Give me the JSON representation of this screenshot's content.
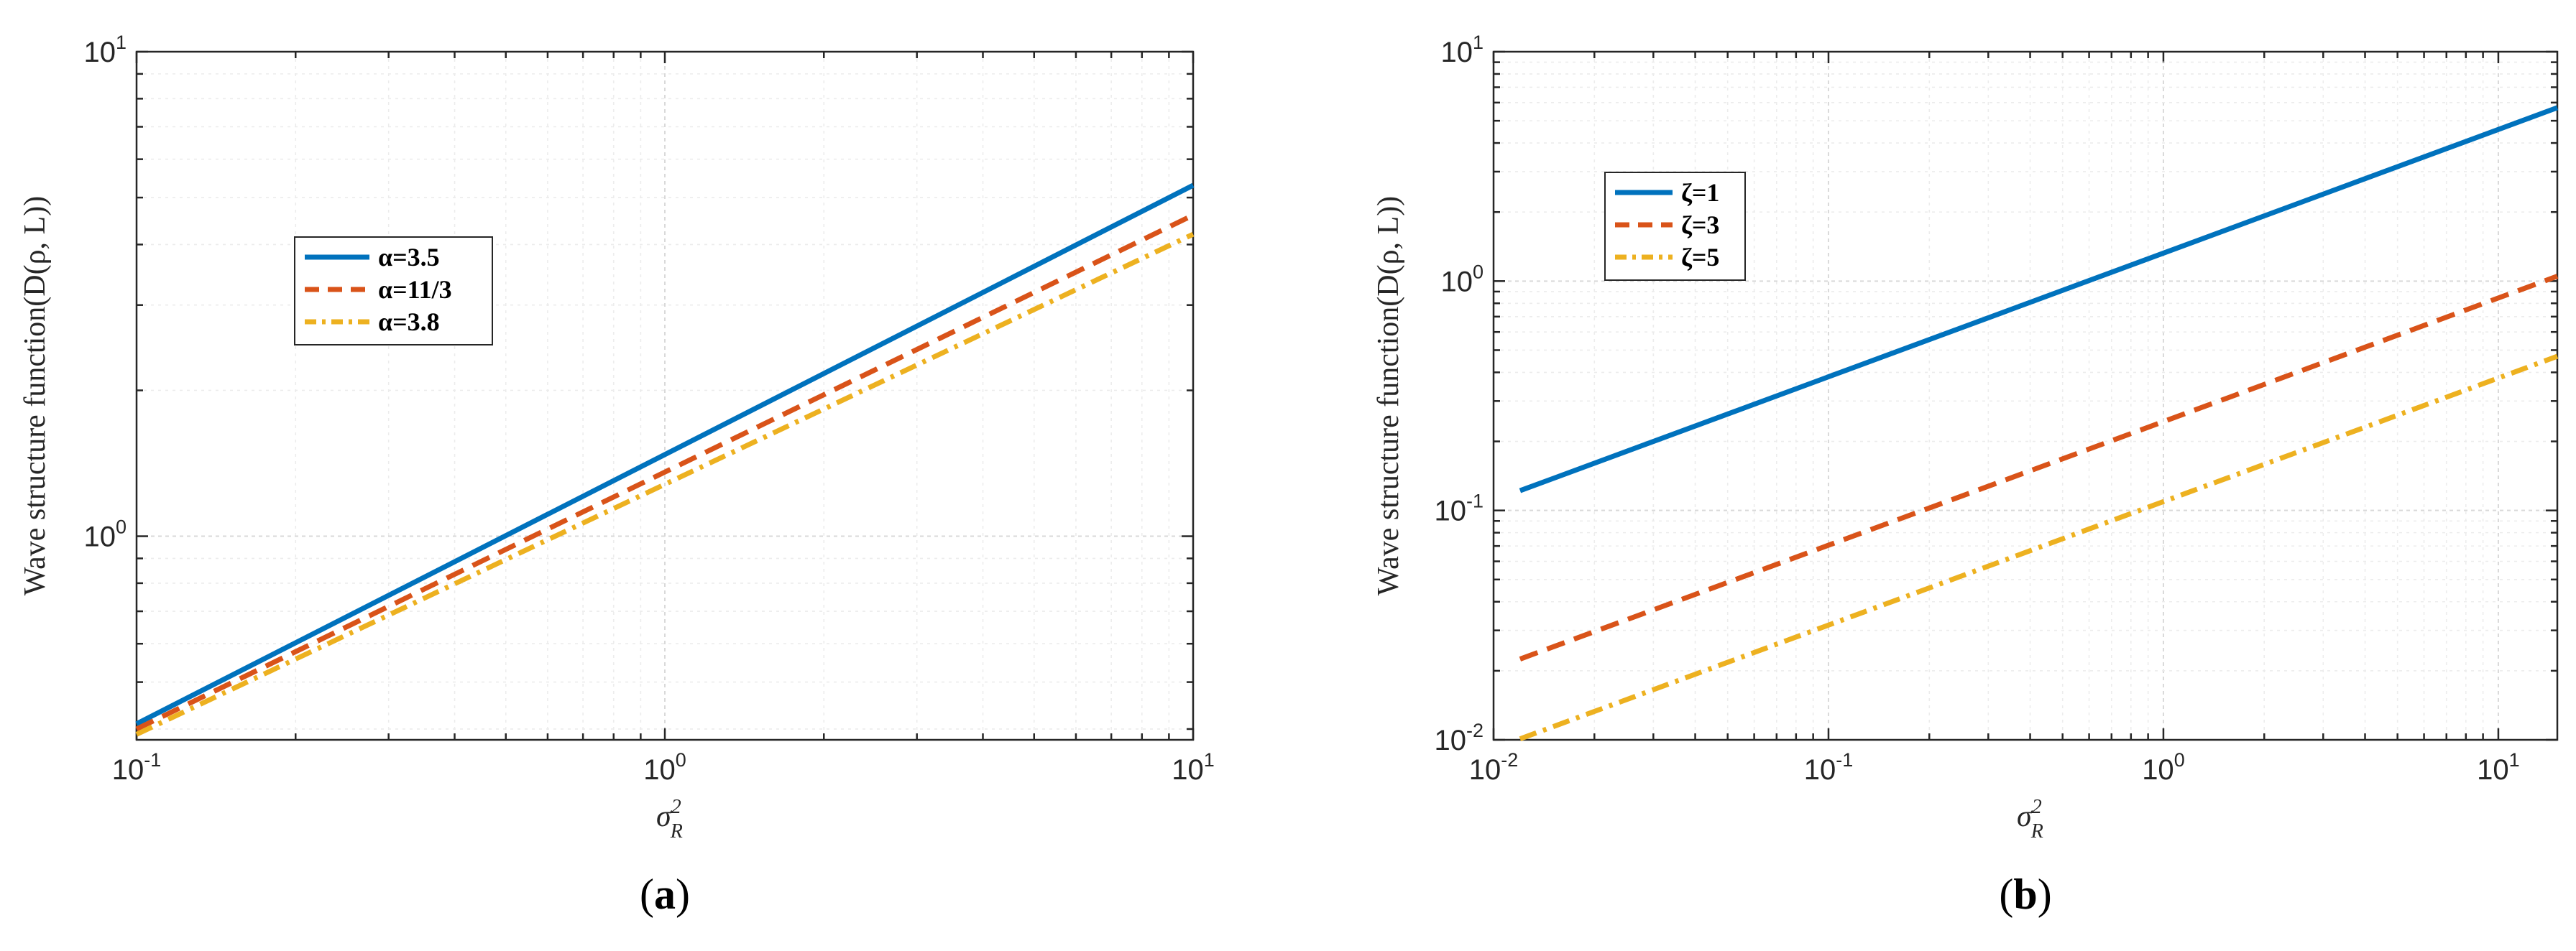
{
  "chart_data": [
    {
      "type": "line",
      "xscale": "log",
      "yscale": "log",
      "xlim": [
        0.1,
        10
      ],
      "ylim": [
        0.38,
        10
      ],
      "x_ticks": [
        {
          "base": "10",
          "exp": "-1"
        },
        {
          "base": "10",
          "exp": "0"
        },
        {
          "base": "10",
          "exp": "1"
        }
      ],
      "y_ticks": [
        {
          "base": "10",
          "exp": "0"
        },
        {
          "base": "10",
          "exp": "1"
        }
      ],
      "xlabel_main": "σ",
      "xlabel_sup": "2",
      "xlabel_sub": "R",
      "ylabel": "Wave structure function(D(ρ, L))",
      "sublabel": {
        "open": "(",
        "letter": "a",
        "close": ")"
      },
      "grid": true,
      "legend_position": "upper-left",
      "series": [
        {
          "name": "α=3.5",
          "color": "#0072BD",
          "style": "solid",
          "x": [
            0.1,
            10
          ],
          "y": [
            0.41,
            5.3
          ]
        },
        {
          "name": "α=11/3",
          "color": "#D95319",
          "style": "dashed",
          "x": [
            0.1,
            10
          ],
          "y": [
            0.4,
            4.6
          ]
        },
        {
          "name": "α=3.8",
          "color": "#EDB120",
          "style": "dashdot",
          "x": [
            0.1,
            10
          ],
          "y": [
            0.39,
            4.2
          ]
        }
      ]
    },
    {
      "type": "line",
      "xscale": "log",
      "yscale": "log",
      "xlim": [
        0.01,
        15
      ],
      "ylim": [
        0.01,
        10
      ],
      "x_ticks": [
        {
          "base": "10",
          "exp": "-2"
        },
        {
          "base": "10",
          "exp": "-1"
        },
        {
          "base": "10",
          "exp": "0"
        },
        {
          "base": "10",
          "exp": "1"
        }
      ],
      "y_ticks": [
        {
          "base": "10",
          "exp": "-2"
        },
        {
          "base": "10",
          "exp": "-1"
        },
        {
          "base": "10",
          "exp": "0"
        },
        {
          "base": "10",
          "exp": "1"
        }
      ],
      "xlabel_main": "σ",
      "xlabel_sup": "2",
      "xlabel_sub": "R",
      "ylabel": "Wave structure function(D(ρ, L))",
      "sublabel": {
        "open": "(",
        "letter": "b",
        "close": ")"
      },
      "grid": true,
      "legend_position": "upper-left",
      "series": [
        {
          "name": "ζ=1",
          "color": "#0072BD",
          "style": "solid",
          "x": [
            0.012,
            15
          ],
          "y": [
            0.122,
            5.7
          ]
        },
        {
          "name": "ζ=3",
          "color": "#D95319",
          "style": "dashed",
          "x": [
            0.012,
            15
          ],
          "y": [
            0.0225,
            1.05
          ]
        },
        {
          "name": "ζ=5",
          "color": "#EDB120",
          "style": "dashdot",
          "x": [
            0.012,
            15
          ],
          "y": [
            0.0101,
            0.47
          ]
        }
      ]
    }
  ]
}
